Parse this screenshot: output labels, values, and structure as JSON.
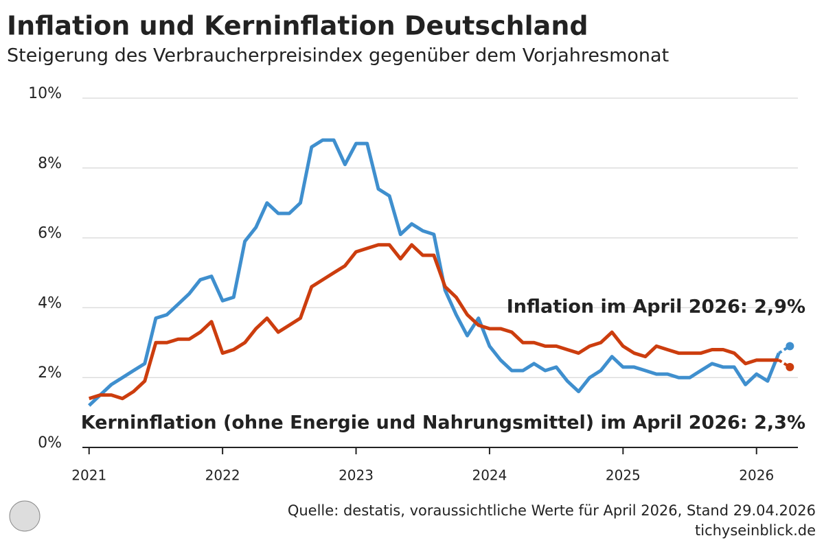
{
  "chart_data": {
    "type": "line",
    "title": "Inflation und Kerninflation Deutschland",
    "subtitle": "Steigerung des Verbraucherpreisindex gegenüber dem Vorjahresmonat",
    "source": "Quelle: destatis, voraussichtliche Werte für April 2026, Stand 29.04.2026",
    "site": "tichyseinblick.de",
    "x": [
      2021,
      2021.083,
      2021.167,
      2021.25,
      2021.333,
      2021.417,
      2021.5,
      2021.583,
      2021.667,
      2021.75,
      2021.833,
      2021.917,
      2022,
      2022.083,
      2022.167,
      2022.25,
      2022.333,
      2022.417,
      2022.5,
      2022.583,
      2022.667,
      2022.75,
      2022.833,
      2022.917,
      2023,
      2023.083,
      2023.167,
      2023.25,
      2023.333,
      2023.417,
      2023.5,
      2023.583,
      2023.667,
      2023.75,
      2023.833,
      2023.917,
      2024,
      2024.083,
      2024.167,
      2024.25,
      2024.333,
      2024.417,
      2024.5,
      2024.583,
      2024.667,
      2024.75,
      2024.833,
      2024.917,
      2025,
      2025.083,
      2025.167,
      2025.25,
      2025.333,
      2025.417,
      2025.5,
      2025.583,
      2025.667,
      2025.75,
      2025.833,
      2025.917,
      2026,
      2026.083,
      2026.167,
      2026.25
    ],
    "series": [
      {
        "name": "Inflation im April 2026: 2,9%",
        "color": "#3f8fce",
        "values": [
          1.2,
          1.5,
          1.8,
          2.0,
          2.2,
          2.4,
          3.7,
          3.8,
          4.1,
          4.4,
          4.8,
          4.9,
          4.2,
          4.3,
          5.9,
          6.3,
          7.0,
          6.7,
          6.7,
          7.0,
          8.6,
          8.8,
          8.8,
          8.1,
          8.7,
          8.7,
          7.4,
          7.2,
          6.1,
          6.4,
          6.2,
          6.1,
          4.5,
          3.8,
          3.2,
          3.7,
          2.9,
          2.5,
          2.2,
          2.2,
          2.4,
          2.2,
          2.3,
          1.9,
          1.6,
          2.0,
          2.2,
          2.6,
          2.3,
          2.3,
          2.2,
          2.1,
          2.1,
          2.0,
          2.0,
          2.2,
          2.4,
          2.3,
          2.3,
          1.8,
          2.1,
          1.9,
          2.7,
          2.9
        ]
      },
      {
        "name": "Kerninflation (ohne Energie und Nahrungsmittel) im April 2026: 2,3%",
        "color": "#cc3d0e",
        "values": [
          1.4,
          1.5,
          1.5,
          1.4,
          1.6,
          1.9,
          3.0,
          3.0,
          3.1,
          3.1,
          3.3,
          3.6,
          2.7,
          2.8,
          3.0,
          3.4,
          3.7,
          3.3,
          3.5,
          3.7,
          4.6,
          4.8,
          5.0,
          5.2,
          5.6,
          5.7,
          5.8,
          5.8,
          5.4,
          5.8,
          5.5,
          5.5,
          4.6,
          4.3,
          3.8,
          3.5,
          3.4,
          3.4,
          3.3,
          3.0,
          3.0,
          2.9,
          2.9,
          2.8,
          2.7,
          2.9,
          3.0,
          3.3,
          2.9,
          2.7,
          2.6,
          2.9,
          2.8,
          2.7,
          2.7,
          2.7,
          2.8,
          2.8,
          2.7,
          2.4,
          2.5,
          2.5,
          2.5,
          2.3
        ]
      }
    ],
    "xlim": [
      2020.95,
      2026.31
    ],
    "xticks": [
      2021,
      2022,
      2023,
      2024,
      2025,
      2026
    ],
    "ylim": [
      0,
      10
    ],
    "yticks": [
      {
        "value": 0,
        "label": "0%"
      },
      {
        "value": 2,
        "label": "2%"
      },
      {
        "value": 4,
        "label": "4%"
      },
      {
        "value": 6,
        "label": "6%"
      },
      {
        "value": 8,
        "label": "8%"
      },
      {
        "value": 10,
        "label": "10%"
      }
    ],
    "grid": true
  }
}
